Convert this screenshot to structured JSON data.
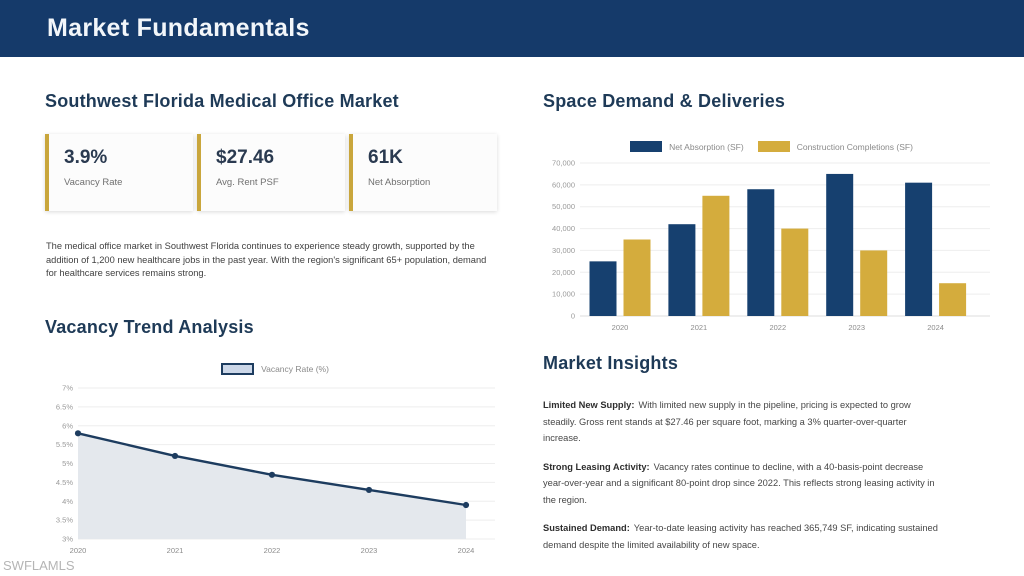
{
  "header": {
    "title": "Market Fundamentals"
  },
  "left": {
    "section1_title": "Southwest Florida Medical Office Market",
    "stats": [
      {
        "value": "3.9%",
        "label": "Vacancy Rate"
      },
      {
        "value": "$27.46",
        "label": "Avg. Rent PSF"
      },
      {
        "value": "61K",
        "label": "Net Absorption"
      }
    ],
    "paragraph": "The medical office market in Southwest Florida continues to experience steady growth, supported by the addition of 1,200 new healthcare jobs in the past year. With the region's significant 65+ population, demand for healthcare services remains strong.",
    "section2_title": "Vacancy Trend Analysis"
  },
  "right": {
    "section1_title": "Space Demand & Deliveries",
    "section2_title": "Market Insights",
    "insights": [
      {
        "label": "Limited New Supply:",
        "text": "With limited new supply in the pipeline, pricing is expected to grow steadily. Gross rent stands at $27.46 per square foot, marking a 3% quarter-over-quarter increase."
      },
      {
        "label": "Strong Leasing Activity:",
        "text": "Vacancy rates continue to decline, with a 40-basis-point decrease year-over-year and a significant 80-point drop since 2022. This reflects strong leasing activity in the region."
      },
      {
        "label": "Sustained Demand:",
        "text": "Year-to-date leasing activity has reached 365,749 SF, indicating sustained demand despite the limited availability of new space."
      }
    ]
  },
  "watermark": "SWFLAMLS",
  "colors": {
    "header_navy": "#153A6A",
    "heading_text": "#1E3A57",
    "accent_gold": "#C9A63C",
    "grid_gray": "#EEEEEE",
    "tick_gray": "#9A9A9A",
    "axis_label_gray": "#8C8C8C",
    "line_navy": "#1D3C5F",
    "area_fill": "#E4E8ED",
    "bar_navy": "#16406F",
    "bar_gold": "#D4AC3D"
  },
  "chart_data": [
    {
      "id": "vacancy_trend",
      "type": "area",
      "title": "Vacancy Trend Analysis",
      "categories": [
        "2020",
        "2021",
        "2022",
        "2023",
        "2024"
      ],
      "series": [
        {
          "name": "Vacancy Rate (%)",
          "color": "#1D3C5F",
          "values": [
            5.8,
            5.2,
            4.7,
            4.3,
            3.9
          ]
        }
      ],
      "xlabel": "",
      "ylabel": "",
      "ylim": [
        3,
        7
      ],
      "yticks": [
        "7%",
        "6.5%",
        "6%",
        "5.5%",
        "5%",
        "4.5%",
        "4%",
        "3.5%",
        "3%"
      ],
      "grid": true,
      "legend_position": "top"
    },
    {
      "id": "space_demand",
      "type": "bar",
      "title": "Space Demand & Deliveries",
      "categories": [
        "2020",
        "2021",
        "2022",
        "2023",
        "2024"
      ],
      "series": [
        {
          "name": "Net Absorption (SF)",
          "color": "#16406F",
          "values": [
            25000,
            42000,
            58000,
            65000,
            61000
          ]
        },
        {
          "name": "Construction Completions (SF)",
          "color": "#D4AC3D",
          "values": [
            35000,
            55000,
            40000,
            30000,
            15000
          ]
        }
      ],
      "xlabel": "",
      "ylabel": "",
      "ylim": [
        0,
        70000
      ],
      "yticks": [
        "70,000",
        "60,000",
        "50,000",
        "40,000",
        "30,000",
        "20,000",
        "10,000",
        "0"
      ],
      "grid": true,
      "legend_position": "top"
    }
  ]
}
